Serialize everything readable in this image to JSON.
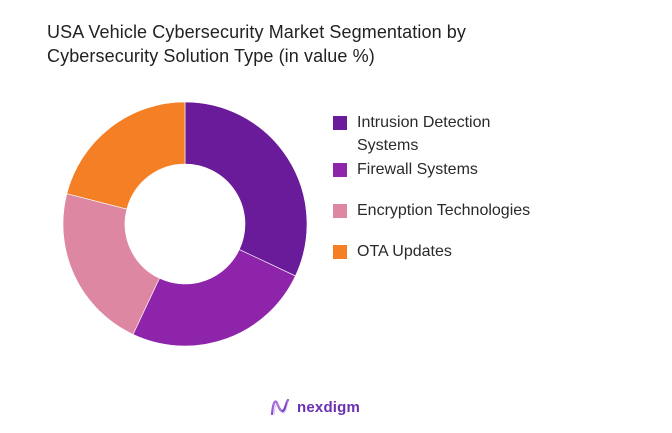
{
  "header": {
    "title_line1": "USA Vehicle Cybersecurity Market Segmentation by",
    "title_line2": "Cybersecurity Solution Type (in value %)"
  },
  "legend": {
    "items": [
      {
        "label": "Intrusion Detection Systems",
        "color": "#6a1b9a"
      },
      {
        "label": "Firewall Systems",
        "color": "#8e24aa"
      },
      {
        "label": "Encryption Technologies",
        "color": "#dd87a3"
      },
      {
        "label": "OTA Updates",
        "color": "#f57f25"
      }
    ]
  },
  "brand": {
    "name": "nexdigm",
    "icon": "nexdigm-wave-logo-icon",
    "color": "#6a2fb2"
  },
  "chart_data": {
    "type": "pie",
    "subtype": "donut",
    "title": "USA Vehicle Cybersecurity Market Segmentation by Cybersecurity Solution Type (in value %)",
    "categories": [
      "Intrusion Detection Systems",
      "Firewall Systems",
      "Encryption Technologies",
      "OTA Updates"
    ],
    "values": [
      32,
      25,
      22,
      21
    ],
    "unit": "%",
    "colors": [
      "#6a1b9a",
      "#8e24aa",
      "#dd87a3",
      "#f57f25"
    ],
    "start_angle_deg": 0,
    "direction": "clockwise",
    "data_labels": false,
    "legend_position": "right",
    "center": [
      185,
      224
    ],
    "outer_radius": 122,
    "inner_radius": 60
  }
}
